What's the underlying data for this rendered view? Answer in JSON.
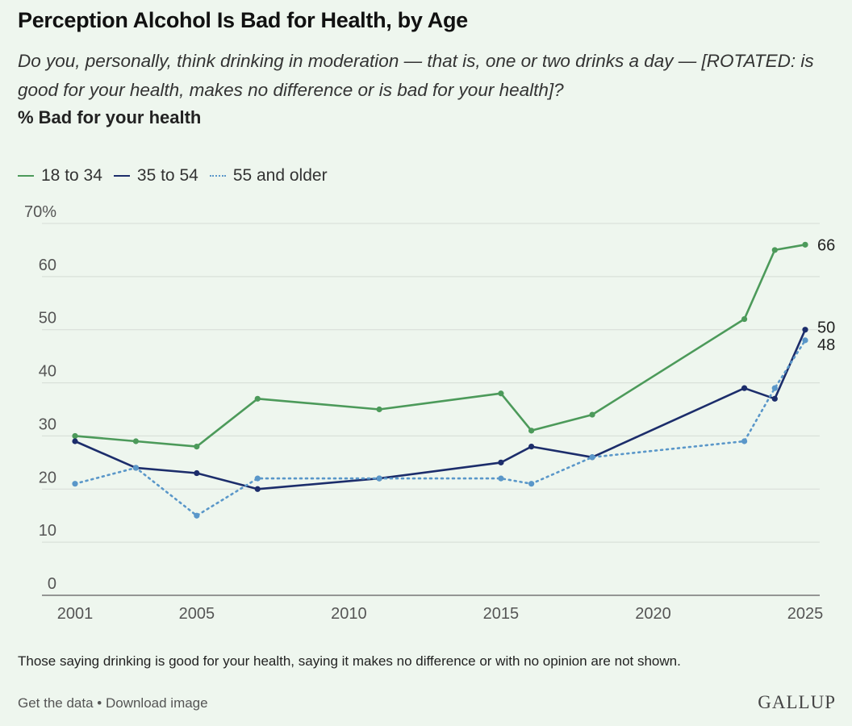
{
  "chart_data": {
    "type": "line",
    "title": "Perception Alcohol Is Bad for Health, by Age",
    "subtitle": "Do you, personally, think drinking in moderation — that is, one or two drinks a day — [ROTATED: is good for your health, makes no difference or is bad for your health]?",
    "measure": "% Bad for your health",
    "xlim": [
      2001,
      2025
    ],
    "ylim": [
      0,
      70
    ],
    "x_ticks": [
      2001,
      2005,
      2010,
      2015,
      2020,
      2025
    ],
    "x_tick_labels": [
      "2001",
      "2005",
      "2010",
      "2015",
      "2020",
      "2025"
    ],
    "y_ticks": [
      0,
      10,
      20,
      30,
      40,
      50,
      60,
      70
    ],
    "y_tick_labels": [
      "0",
      "10",
      "20",
      "30",
      "40",
      "50",
      "60",
      "70%"
    ],
    "grid": true,
    "legend_position": "top-left",
    "series": [
      {
        "name": "18 to 34",
        "color": "#4c9a5a",
        "style": "solid",
        "x": [
          2001,
          2003,
          2005,
          2007,
          2011,
          2015,
          2016,
          2018,
          2023,
          2024,
          2025
        ],
        "values": [
          30,
          29,
          28,
          37,
          35,
          38,
          31,
          34,
          52,
          65,
          66
        ],
        "end_label": "66"
      },
      {
        "name": "35 to 54",
        "color": "#1c2d6b",
        "style": "solid",
        "x": [
          2001,
          2003,
          2005,
          2007,
          2011,
          2015,
          2016,
          2018,
          2023,
          2024,
          2025
        ],
        "values": [
          29,
          24,
          23,
          20,
          22,
          25,
          28,
          26,
          39,
          37,
          50
        ],
        "end_label": "50"
      },
      {
        "name": "55 and older",
        "color": "#5a97c9",
        "style": "dotted",
        "x": [
          2001,
          2003,
          2005,
          2007,
          2011,
          2015,
          2016,
          2018,
          2023,
          2024,
          2025
        ],
        "values": [
          21,
          24,
          15,
          22,
          22,
          22,
          21,
          26,
          29,
          39,
          48
        ],
        "end_label": "48"
      }
    ]
  },
  "note": "Those saying drinking is good for your health, saying it makes no difference or with no opinion are not shown.",
  "footer": "Get the data • Download image",
  "logo": "GALLUP"
}
